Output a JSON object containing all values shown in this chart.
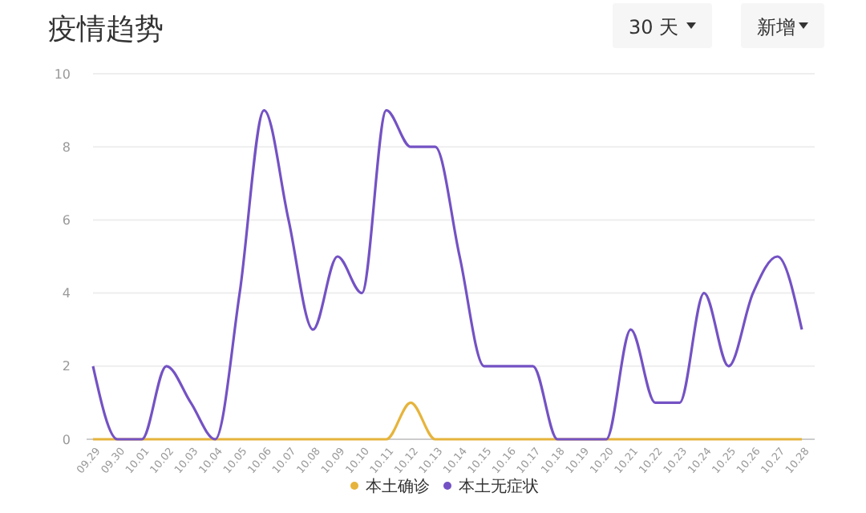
{
  "chart_data": {
    "type": "line",
    "title": "疫情趋势",
    "annotations": [
      "30 天",
      "新增"
    ],
    "categories": [
      "09.29",
      "09.30",
      "10.01",
      "10.02",
      "10.03",
      "10.04",
      "10.05",
      "10.06",
      "10.07",
      "10.08",
      "10.09",
      "10.10",
      "10.11",
      "10.12",
      "10.13",
      "10.14",
      "10.15",
      "10.16",
      "10.17",
      "10.18",
      "10.19",
      "10.20",
      "10.21",
      "10.22",
      "10.23",
      "10.24",
      "10.25",
      "10.26",
      "10.27",
      "10.28"
    ],
    "series": [
      {
        "name": "本土确诊",
        "color": "#e6b43c",
        "values": [
          0,
          0,
          0,
          0,
          0,
          0,
          0,
          0,
          0,
          0,
          0,
          0,
          0,
          1,
          0,
          0,
          0,
          0,
          0,
          0,
          0,
          0,
          0,
          0,
          0,
          0,
          0,
          0,
          0,
          0
        ]
      },
      {
        "name": "本土无症状",
        "color": "#7452c4",
        "values": [
          2,
          0,
          0,
          2,
          1,
          0,
          4,
          9,
          6,
          3,
          5,
          4,
          9,
          8,
          8,
          5,
          2,
          2,
          2,
          0,
          0,
          0,
          3,
          1,
          1,
          4,
          2,
          4,
          5,
          3
        ]
      }
    ],
    "ylim": [
      0,
      10
    ],
    "yticks": [
      0,
      2,
      4,
      6,
      8,
      10
    ],
    "grid": "y",
    "legend": "bottom",
    "marker": "none",
    "line_style": "solid"
  }
}
